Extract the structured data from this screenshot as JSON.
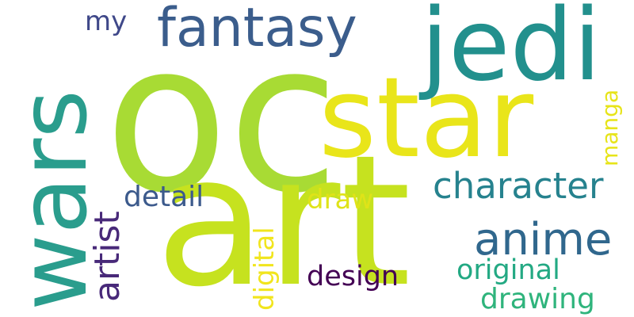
{
  "words": [
    {
      "text": "oc",
      "color": "#a8db34",
      "rotation": "horizontal"
    },
    {
      "text": "art",
      "color": "#c6e21f",
      "rotation": "horizontal"
    },
    {
      "text": "star",
      "color": "#e9e51a",
      "rotation": "horizontal"
    },
    {
      "text": "wars",
      "color": "#2a9d8d",
      "rotation": "vertical"
    },
    {
      "text": "jedi",
      "color": "#22908d",
      "rotation": "horizontal"
    },
    {
      "text": "fantasy",
      "color": "#3b5d8c",
      "rotation": "horizontal"
    },
    {
      "text": "anime",
      "color": "#30678d",
      "rotation": "horizontal"
    },
    {
      "text": "character",
      "color": "#26828e",
      "rotation": "horizontal"
    },
    {
      "text": "artist",
      "color": "#482979",
      "rotation": "vertical"
    },
    {
      "text": "detail",
      "color": "#3c5a8c",
      "rotation": "horizontal"
    },
    {
      "text": "draw",
      "color": "#dfe318",
      "rotation": "horizontal"
    },
    {
      "text": "digital",
      "color": "#f1e51d",
      "rotation": "vertical"
    },
    {
      "text": "manga",
      "color": "#e7e419",
      "rotation": "vertical"
    },
    {
      "text": "design",
      "color": "#440154",
      "rotation": "horizontal"
    },
    {
      "text": "original",
      "color": "#23a983",
      "rotation": "horizontal"
    },
    {
      "text": "drawing",
      "color": "#2fb47c",
      "rotation": "horizontal"
    },
    {
      "text": "my",
      "color": "#3f4889",
      "rotation": "horizontal"
    }
  ]
}
